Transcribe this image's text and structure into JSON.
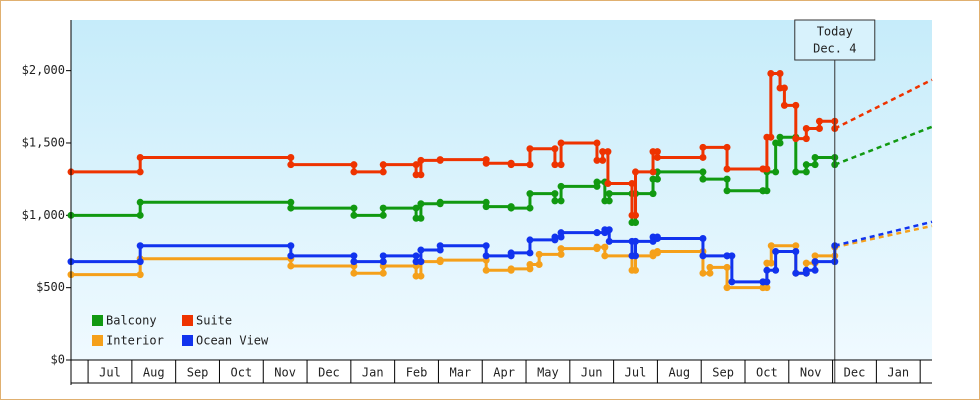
{
  "chart_data": {
    "type": "step-line",
    "today_label": [
      "Today",
      "Dec. 4"
    ],
    "today_x": 17.05,
    "ylim": [
      0,
      2350
    ],
    "yticks": [
      {
        "value": 0,
        "label": "$0"
      },
      {
        "value": 500,
        "label": "$500"
      },
      {
        "value": 1000,
        "label": "$1,000"
      },
      {
        "value": 1500,
        "label": "$1,500"
      },
      {
        "value": 2000,
        "label": "$2,000"
      }
    ],
    "xlim": [
      -0.39,
      19.27
    ],
    "xticks": [
      {
        "value": 0.5,
        "label": "Jul"
      },
      {
        "value": 1.5,
        "label": "Aug"
      },
      {
        "value": 2.5,
        "label": "Sep"
      },
      {
        "value": 3.5,
        "label": "Oct"
      },
      {
        "value": 4.5,
        "label": "Nov"
      },
      {
        "value": 5.5,
        "label": "Dec"
      },
      {
        "value": 6.5,
        "label": "Jan"
      },
      {
        "value": 7.5,
        "label": "Feb"
      },
      {
        "value": 8.5,
        "label": "Mar"
      },
      {
        "value": 9.5,
        "label": "Apr"
      },
      {
        "value": 10.5,
        "label": "May"
      },
      {
        "value": 11.5,
        "label": "Jun"
      },
      {
        "value": 12.5,
        "label": "Jul"
      },
      {
        "value": 13.5,
        "label": "Aug"
      },
      {
        "value": 14.5,
        "label": "Sep"
      },
      {
        "value": 15.5,
        "label": "Oct"
      },
      {
        "value": 16.5,
        "label": "Nov"
      },
      {
        "value": 17.5,
        "label": "Dec"
      },
      {
        "value": 18.5,
        "label": "Jan"
      }
    ],
    "legend": "lower left",
    "series": [
      {
        "name": "Balcony",
        "color": "#119911",
        "x": [
          -0.39,
          1.19,
          4.63,
          6.07,
          6.74,
          7.49,
          7.6,
          8.04,
          9.09,
          9.66,
          10.09,
          10.66,
          10.8,
          11.62,
          11.8,
          11.9,
          12.42,
          12.5,
          12.9,
          13.0,
          14.04,
          14.59,
          15.41,
          15.5,
          15.7,
          15.8,
          16.16,
          16.4,
          16.6,
          17.05
        ],
        "values": [
          1000,
          1090,
          1050,
          1000,
          1050,
          980,
          1080,
          1090,
          1060,
          1050,
          1150,
          1100,
          1200,
          1230,
          1100,
          1150,
          950,
          1150,
          1250,
          1300,
          1250,
          1170,
          1170,
          1300,
          1500,
          1540,
          1300,
          1350,
          1400,
          1350
        ],
        "forecast": {
          "x": [
            17.05,
            19.27
          ],
          "values": [
            1350,
            1612
          ]
        }
      },
      {
        "name": "Suite",
        "color": "#ee3300",
        "x": [
          -0.39,
          1.19,
          4.63,
          6.07,
          6.74,
          7.49,
          7.6,
          8.04,
          9.09,
          9.66,
          10.09,
          10.66,
          10.8,
          11.62,
          11.75,
          11.87,
          12.42,
          12.5,
          12.9,
          13.0,
          14.04,
          14.59,
          15.41,
          15.5,
          15.59,
          15.8,
          15.9,
          16.16,
          16.4,
          16.7,
          17.05
        ],
        "values": [
          1300,
          1400,
          1350,
          1300,
          1350,
          1280,
          1380,
          1385,
          1360,
          1350,
          1460,
          1350,
          1500,
          1380,
          1440,
          1220,
          1000,
          1300,
          1440,
          1400,
          1470,
          1320,
          1320,
          1540,
          1980,
          1880,
          1760,
          1530,
          1600,
          1650,
          1600
        ],
        "forecast": {
          "x": [
            17.05,
            19.27
          ],
          "values": [
            1600,
            1937
          ]
        }
      },
      {
        "name": "Interior",
        "color": "#f5a01a",
        "x": [
          -0.39,
          1.19,
          4.63,
          6.07,
          6.74,
          7.49,
          7.6,
          8.04,
          9.09,
          9.66,
          10.09,
          10.3,
          10.8,
          11.62,
          11.8,
          12.42,
          12.5,
          12.9,
          13.0,
          14.04,
          14.2,
          14.59,
          15.41,
          15.5,
          15.6,
          16.16,
          16.4,
          16.6,
          17.05
        ],
        "values": [
          590,
          700,
          650,
          600,
          650,
          580,
          680,
          690,
          620,
          630,
          660,
          730,
          770,
          780,
          720,
          620,
          720,
          740,
          750,
          600,
          640,
          500,
          500,
          670,
          790,
          600,
          670,
          720,
          780
        ],
        "forecast": {
          "x": [
            17.05,
            19.27
          ],
          "values": [
            780,
            927
          ]
        }
      },
      {
        "name": "Ocean View",
        "color": "#1133ee",
        "x": [
          -0.39,
          1.19,
          4.63,
          6.07,
          6.74,
          7.49,
          7.6,
          8.04,
          9.09,
          9.66,
          10.09,
          10.66,
          10.8,
          11.62,
          11.8,
          11.9,
          12.42,
          12.5,
          12.9,
          13.0,
          14.04,
          14.59,
          14.7,
          15.41,
          15.5,
          15.7,
          16.16,
          16.4,
          16.6,
          17.05
        ],
        "values": [
          680,
          790,
          720,
          680,
          720,
          680,
          760,
          790,
          720,
          740,
          830,
          850,
          880,
          880,
          900,
          820,
          720,
          820,
          850,
          840,
          720,
          720,
          540,
          540,
          620,
          750,
          600,
          620,
          680,
          790
        ],
        "forecast": {
          "x": [
            17.05,
            19.27
          ],
          "values": [
            790,
            955
          ]
        }
      }
    ]
  }
}
